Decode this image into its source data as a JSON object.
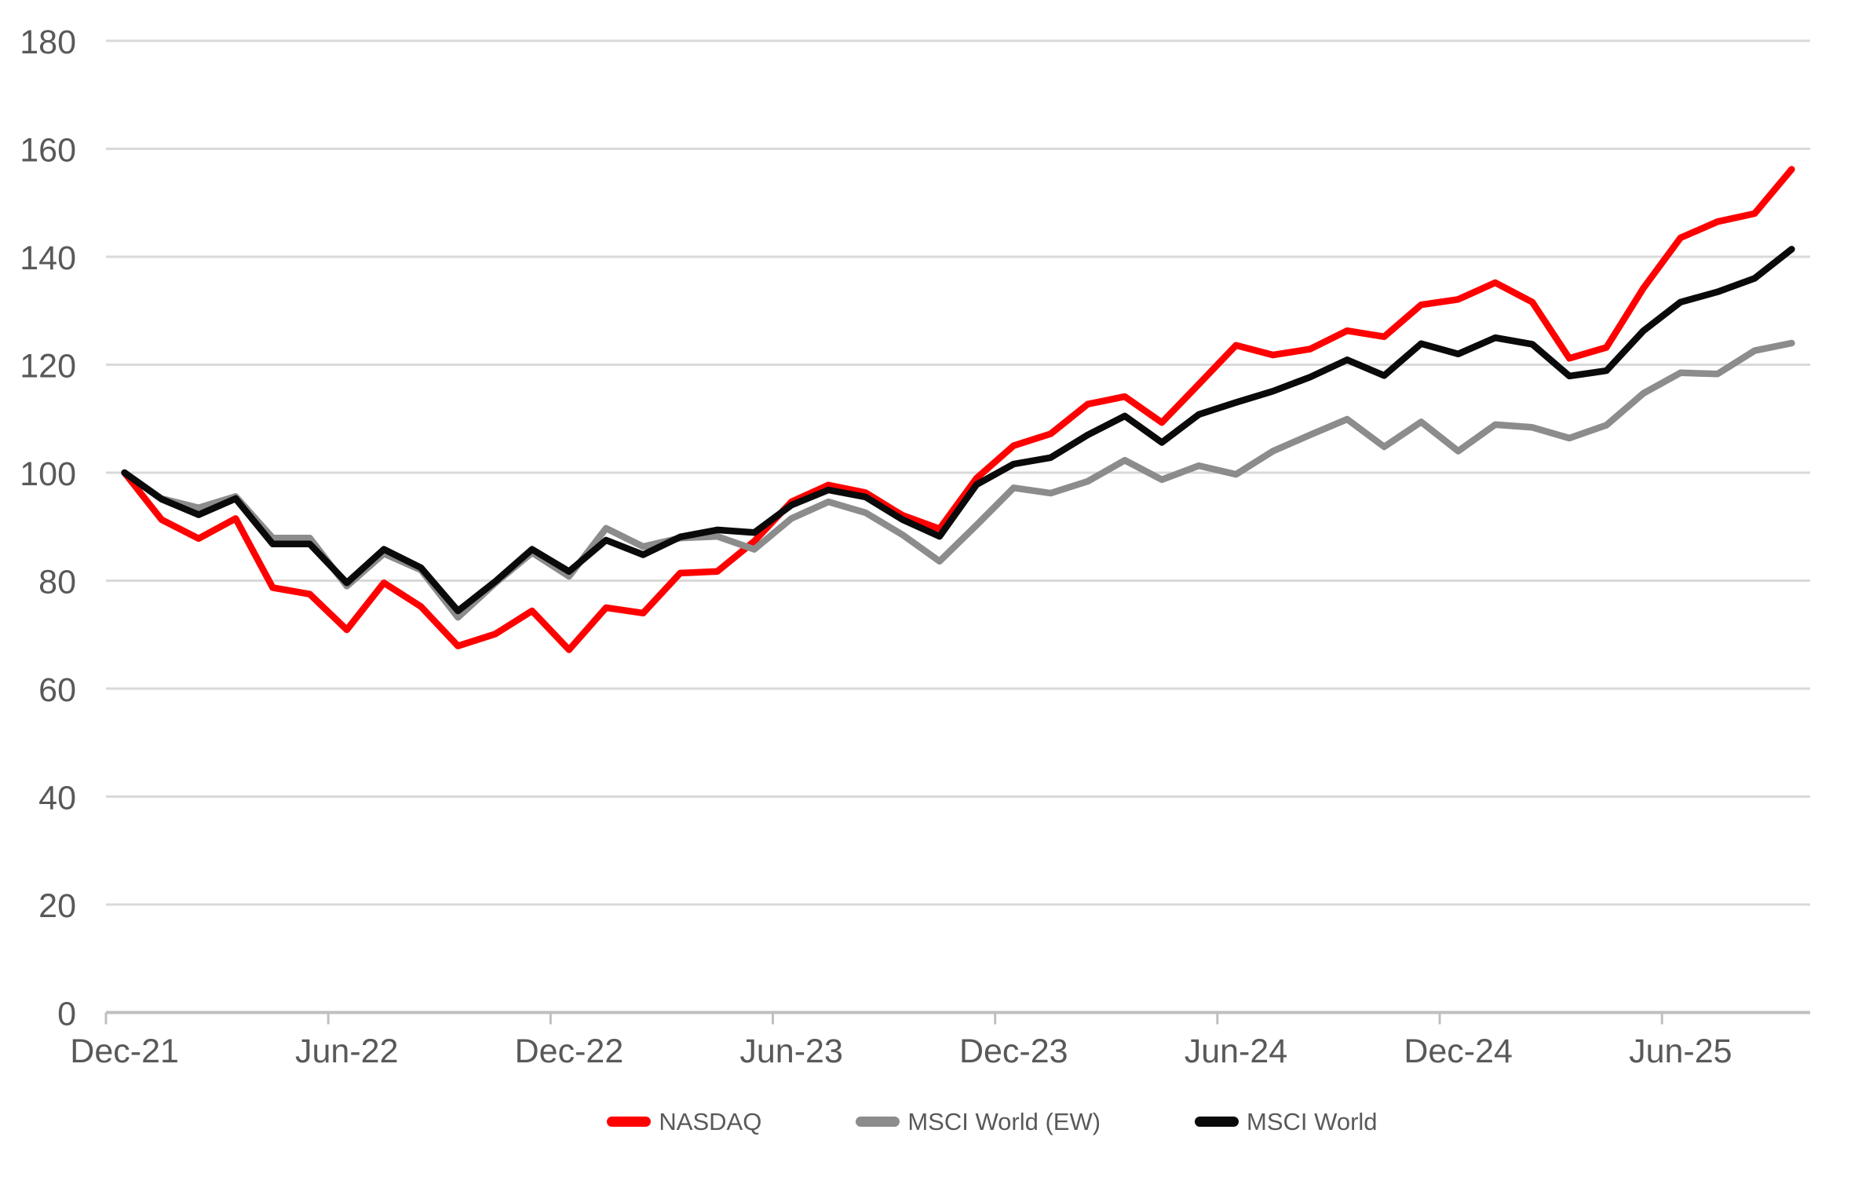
{
  "chart_data": {
    "type": "line",
    "title": "",
    "xlabel": "",
    "ylabel": "",
    "grid": "horizontal",
    "legend_position": "bottom",
    "x": [
      "Dec-21",
      "Jan-22",
      "Feb-22",
      "Mar-22",
      "Apr-22",
      "May-22",
      "Jun-22",
      "Jul-22",
      "Aug-22",
      "Sep-22",
      "Oct-22",
      "Nov-22",
      "Dec-22",
      "Jan-23",
      "Feb-23",
      "Mar-23",
      "Apr-23",
      "May-23",
      "Jun-23",
      "Jul-23",
      "Aug-23",
      "Sep-23",
      "Oct-23",
      "Nov-23",
      "Dec-23",
      "Jan-24",
      "Feb-24",
      "Mar-24",
      "Apr-24",
      "May-24",
      "Jun-24",
      "Jul-24",
      "Aug-24",
      "Sep-24",
      "Oct-24",
      "Nov-24",
      "Dec-24",
      "Jan-25",
      "Feb-25",
      "Mar-25",
      "Apr-25",
      "May-25",
      "Jun-25",
      "Jul-25",
      "Aug-25",
      "Sep-25"
    ],
    "x_axis": {
      "tick_labels": [
        "Dec-21",
        "Jun-22",
        "Dec-22",
        "Jun-23",
        "Dec-23",
        "Jun-24",
        "Dec-24",
        "Jun-25"
      ],
      "tick_interval": 6
    },
    "y_axis": {
      "min": 0,
      "max": 180,
      "step": 20,
      "ticks": [
        0,
        20,
        40,
        60,
        80,
        100,
        120,
        140,
        160,
        180
      ]
    },
    "series": [
      {
        "name": "NASDAQ",
        "color": "#FF0000",
        "values": [
          100,
          91.3,
          87.8,
          91.5,
          78.7,
          77.5,
          70.9,
          79.6,
          75.2,
          67.9,
          70.1,
          74.4,
          67.2,
          75.0,
          74.0,
          81.4,
          81.7,
          87.3,
          94.6,
          97.7,
          96.3,
          92.1,
          89.6,
          99.0,
          105.0,
          107.2,
          112.7,
          114.1,
          109.3,
          116.4,
          123.6,
          121.8,
          122.9,
          126.3,
          125.2,
          131.1,
          132.1,
          135.2,
          131.6,
          121.2,
          123.2,
          134.2,
          143.5,
          146.5,
          148.0,
          156.2
        ]
      },
      {
        "name": "MSCI World (EW)",
        "color": "#8C8C8C",
        "values": [
          100,
          95.2,
          93.5,
          95.6,
          87.9,
          87.9,
          79.0,
          85.0,
          82.0,
          73.2,
          79.5,
          85.2,
          80.8,
          89.7,
          86.3,
          87.9,
          88.2,
          85.8,
          91.5,
          94.6,
          92.6,
          88.5,
          83.6,
          90.3,
          97.2,
          96.2,
          98.4,
          102.3,
          98.7,
          101.3,
          99.7,
          104.0,
          107.0,
          109.9,
          104.8,
          109.4,
          104.0,
          108.9,
          108.4,
          106.4,
          108.8,
          114.7,
          118.5,
          118.3,
          122.6,
          124.0
        ]
      },
      {
        "name": "MSCI World",
        "color": "#0A0A0A",
        "values": [
          100,
          95.1,
          92.2,
          95.2,
          86.8,
          86.8,
          79.6,
          85.8,
          82.4,
          74.4,
          79.8,
          85.8,
          81.7,
          87.5,
          84.8,
          88.1,
          89.4,
          88.9,
          94.0,
          96.8,
          95.5,
          91.3,
          88.2,
          97.8,
          101.6,
          102.8,
          107.0,
          110.5,
          105.6,
          110.8,
          113.0,
          115.1,
          117.7,
          120.9,
          118.0,
          123.9,
          122.0,
          125.0,
          123.8,
          117.9,
          118.9,
          126.3,
          131.6,
          133.5,
          136.0,
          141.4
        ]
      }
    ],
    "style": {
      "gridline_color": "#D9D9D9",
      "axis_color": "#BFBFBF",
      "label_color": "#595959",
      "line_width": 8.5
    }
  }
}
